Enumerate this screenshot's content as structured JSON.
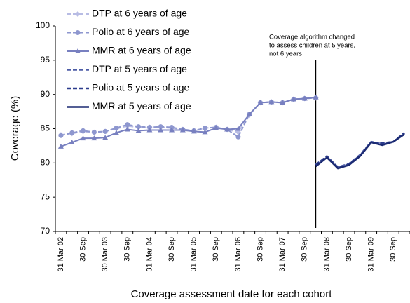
{
  "chart_data": {
    "type": "line",
    "y_label": "Coverage (%)",
    "x_label": "Coverage assessment date for each cohort",
    "annotation": [
      "Coverage algorithm changed",
      " to assess children at 5 years,",
      "not 6 years"
    ],
    "categories": [
      "31 Mar 02",
      null,
      "30 Sep",
      null,
      "30 Mar 03",
      null,
      "30 Sep",
      null,
      "31 Mar 04",
      null,
      "30 Sep",
      null,
      "31 Mar 05",
      null,
      "30 Sep",
      null,
      "31 Mar 06",
      null,
      "30 Sep",
      null,
      "31 Mar 07",
      null,
      "30 Sep",
      null,
      "31 Mar 08",
      null,
      "30 Sep",
      null,
      "31 Mar 09",
      null,
      "30 Sep",
      null
    ],
    "ylim": [
      70,
      100
    ],
    "yticks": [
      70,
      75,
      80,
      85,
      90,
      95,
      100
    ],
    "series": [
      {
        "name": "DTP at 6 years of age",
        "color": "#b8bce4",
        "dash": true,
        "marker": "diamond",
        "values": [
          84.1,
          84.3,
          84.6,
          84.4,
          84.6,
          85.0,
          85.4,
          85.2,
          85.2,
          85.2,
          85.1,
          84.9,
          84.7,
          85.1,
          85.2,
          84.9,
          84.5,
          87.0,
          88.8,
          88.9,
          88.8,
          89.3,
          89.4,
          89.5,
          null,
          null,
          null,
          null,
          null,
          null,
          null,
          null
        ]
      },
      {
        "name": "Polio at 6 years of age",
        "color": "#8e97cf",
        "dash": true,
        "marker": "circle",
        "values": [
          84.0,
          84.4,
          84.7,
          84.5,
          84.6,
          85.1,
          85.6,
          85.3,
          85.2,
          85.3,
          85.2,
          84.9,
          84.7,
          85.1,
          85.2,
          84.9,
          83.8,
          87.1,
          88.8,
          88.9,
          88.8,
          89.3,
          89.4,
          89.5,
          null,
          null,
          null,
          null,
          null,
          null,
          null,
          null
        ]
      },
      {
        "name": "MMR at 6 years of age",
        "color": "#7880c0",
        "dash": false,
        "marker": "triangle",
        "values": [
          82.4,
          83.0,
          83.6,
          83.6,
          83.7,
          84.4,
          84.9,
          84.7,
          84.8,
          84.8,
          84.8,
          84.8,
          84.6,
          84.5,
          85.1,
          84.9,
          85.0,
          87.1,
          88.8,
          88.9,
          88.8,
          89.3,
          89.4,
          89.6,
          null,
          null,
          null,
          null,
          null,
          null,
          null,
          null
        ]
      },
      {
        "name": "DTP at 5 years of age",
        "color": "#4d5ca6",
        "dash": true,
        "marker": "none",
        "values": [
          null,
          null,
          null,
          null,
          null,
          null,
          null,
          null,
          null,
          null,
          null,
          null,
          null,
          null,
          null,
          null,
          null,
          null,
          null,
          null,
          null,
          null,
          null,
          79.8,
          80.9,
          79.4,
          79.9,
          81.2,
          83.1,
          82.8,
          83.1,
          84.3
        ]
      },
      {
        "name": "Polio at 5 years of age",
        "color": "#2b3b8c",
        "dash": true,
        "marker": "none",
        "values": [
          null,
          null,
          null,
          null,
          null,
          null,
          null,
          null,
          null,
          null,
          null,
          null,
          null,
          null,
          null,
          null,
          null,
          null,
          null,
          null,
          null,
          null,
          null,
          79.7,
          81.0,
          79.3,
          79.8,
          81.1,
          83.0,
          82.9,
          83.1,
          84.4
        ]
      },
      {
        "name": "MMR at 5 years of age",
        "color": "#1b2a72",
        "dash": false,
        "marker": "none",
        "values": [
          null,
          null,
          null,
          null,
          null,
          null,
          null,
          null,
          null,
          null,
          null,
          null,
          null,
          null,
          null,
          null,
          null,
          null,
          null,
          null,
          null,
          null,
          null,
          79.5,
          80.8,
          79.2,
          79.7,
          81.0,
          83.0,
          82.6,
          83.1,
          84.2
        ]
      }
    ]
  }
}
